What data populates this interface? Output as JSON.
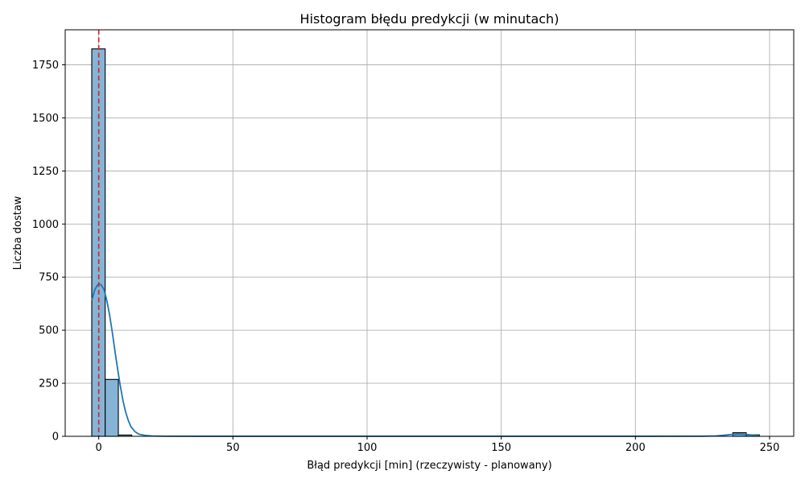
{
  "chart_data": {
    "type": "bar",
    "title": "Histogram błędu predykcji (w minutach)",
    "xlabel": "Błąd predykcji [min] (rzeczywisty - planowany)",
    "ylabel": "Liczba dostaw",
    "xlim": [
      -12.5,
      259
    ],
    "ylim": [
      0,
      1915
    ],
    "xticks": [
      0,
      50,
      100,
      150,
      200,
      250
    ],
    "yticks": [
      0,
      250,
      500,
      750,
      1000,
      1250,
      1500,
      1750
    ],
    "grid": true,
    "bins": [
      {
        "start": -2.6,
        "end": 2.4,
        "count": 1825
      },
      {
        "start": 2.4,
        "end": 7.3,
        "count": 268
      },
      {
        "start": 7.3,
        "end": 12.3,
        "count": 6
      },
      {
        "start": 236.3,
        "end": 241.3,
        "count": 17
      },
      {
        "start": 241.3,
        "end": 246.2,
        "count": 7
      }
    ],
    "bar_color": "#86b4d6",
    "bar_edge_color": "#000000",
    "kde": {
      "color": "#1f77b4",
      "points": [
        [
          -2.6,
          640
        ],
        [
          -1.5,
          690
        ],
        [
          -0.5,
          712
        ],
        [
          0.2,
          718
        ],
        [
          1.0,
          712
        ],
        [
          2.0,
          690
        ],
        [
          3.0,
          640
        ],
        [
          4.0,
          575
        ],
        [
          5.0,
          495
        ],
        [
          6.0,
          405
        ],
        [
          7.0,
          320
        ],
        [
          8.0,
          240
        ],
        [
          9.0,
          170
        ],
        [
          10.0,
          115
        ],
        [
          11.0,
          75
        ],
        [
          12.0,
          45
        ],
        [
          13.5,
          22
        ],
        [
          15.0,
          10
        ],
        [
          17.5,
          4
        ],
        [
          20.0,
          1.5
        ],
        [
          25.0,
          0.4
        ],
        [
          40.0,
          0.2
        ],
        [
          100.0,
          0.2
        ],
        [
          200.0,
          0.2
        ],
        [
          225.0,
          0.5
        ],
        [
          230.0,
          2
        ],
        [
          233.0,
          5
        ],
        [
          236.0,
          9
        ],
        [
          238.5,
          11
        ],
        [
          241.0,
          9
        ],
        [
          243.5,
          6
        ],
        [
          246.2,
          3
        ]
      ]
    },
    "reference_line": {
      "x": 0,
      "color": "#d62728",
      "style": "dashed"
    }
  }
}
